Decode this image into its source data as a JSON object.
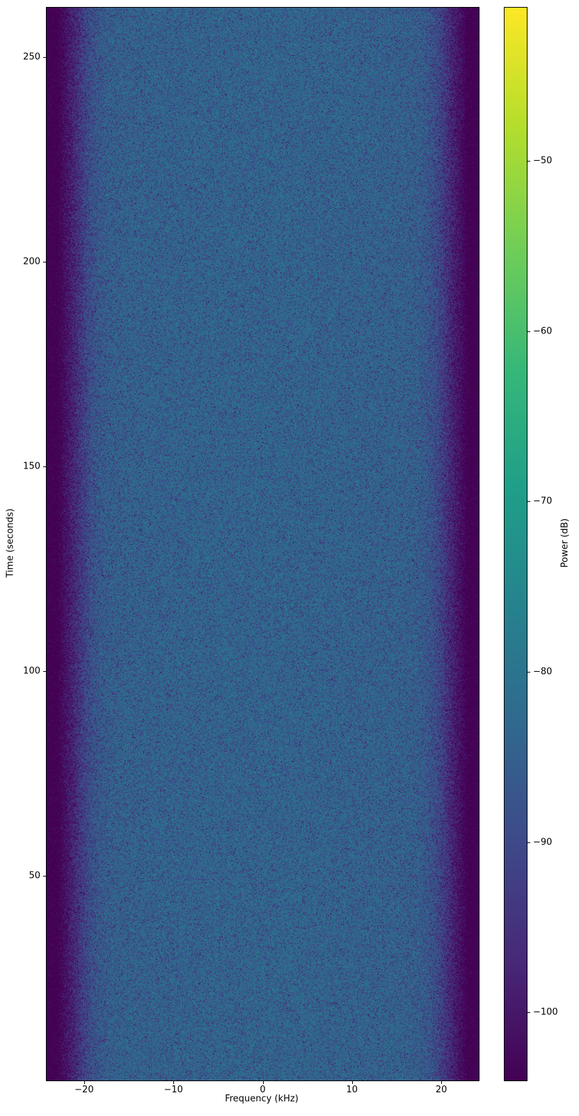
{
  "chart_data": {
    "type": "heatmap",
    "variant": "spectrogram-waterfall",
    "title": "",
    "xlabel": "Frequency (kHz)",
    "ylabel": "Time (seconds)",
    "xlim": [
      -24.2,
      24.2
    ],
    "ylim": [
      0,
      262
    ],
    "grid": false,
    "xticks": {
      "values": [
        -20,
        -10,
        0,
        10,
        20
      ],
      "labels": [
        "−20",
        "−10",
        "0",
        "10",
        "20"
      ]
    },
    "yticks": {
      "values": [
        50,
        100,
        150,
        200,
        250
      ],
      "labels": [
        "50",
        "100",
        "150",
        "200",
        "250"
      ]
    },
    "colormap": {
      "name": "viridis",
      "positions": [
        0,
        0.11,
        0.22,
        0.33,
        0.44,
        0.55,
        0.66,
        0.77,
        0.89,
        1
      ],
      "stops": [
        "#440154",
        "#482878",
        "#3e4989",
        "#31688e",
        "#26828e",
        "#1f9e89",
        "#35b779",
        "#6dcd59",
        "#b4de2c",
        "#fde725"
      ]
    },
    "colorbar": {
      "label": "Power (dB)",
      "vmin": -104,
      "vmax": -41,
      "tick_values": [
        -50,
        -60,
        -70,
        -80,
        -90,
        -100
      ],
      "tick_labels": [
        "−50",
        "−60",
        "−70",
        "−80",
        "−90",
        "−100"
      ]
    },
    "spectral_profile": {
      "comment": "Power vs frequency, constant over time; noisy flat passband ~ -82 dB in the center with filter roll-off to the ~ -104 dB floor beyond +/-22 kHz",
      "frequencies_khz": [
        -24.2,
        -23.0,
        -22.3,
        -21.5,
        -20.7,
        -20.0,
        -19.2,
        -18.3,
        -17.3,
        -15.0,
        -8.0,
        0.0,
        8.0,
        15.0,
        17.3,
        18.3,
        19.2,
        20.0,
        20.7,
        21.5,
        22.3,
        23.0,
        24.2
      ],
      "power_db": [
        -106,
        -106,
        -101,
        -97,
        -93,
        -89.5,
        -86.5,
        -84.5,
        -83.3,
        -82.6,
        -82.2,
        -82.0,
        -82.2,
        -82.6,
        -83.3,
        -84.5,
        -86.5,
        -89.5,
        -93,
        -97,
        -101,
        -106,
        -106
      ],
      "noise": {
        "model": "rayleigh-fading-db",
        "max_db": 6,
        "min_db": -30
      }
    }
  }
}
